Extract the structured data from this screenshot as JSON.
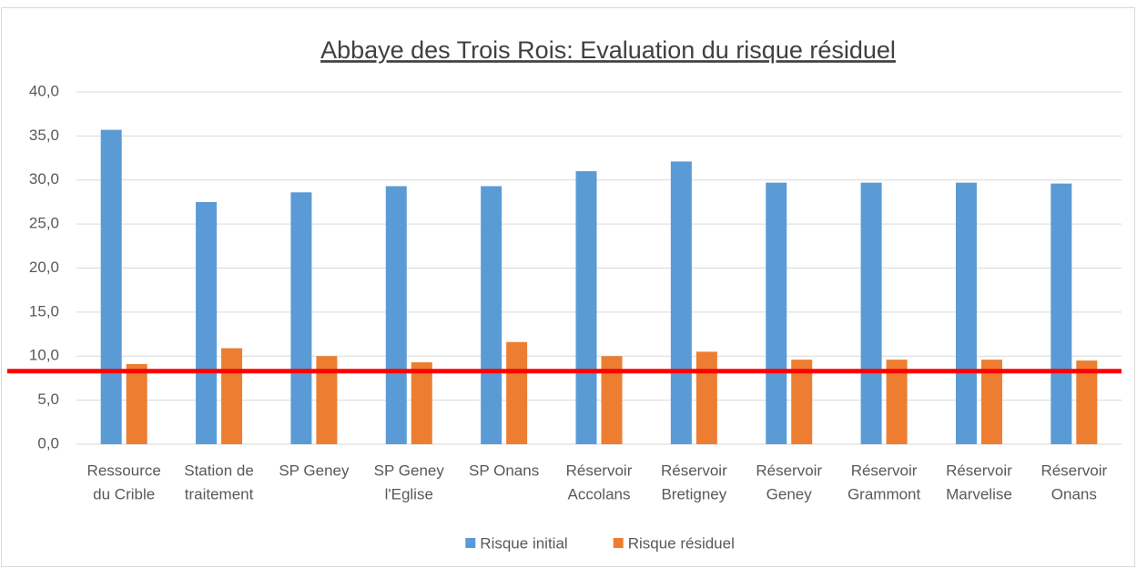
{
  "chart_data": {
    "type": "bar",
    "title": "Abbaye des Trois Rois: Evaluation du risque résiduel",
    "categories": [
      [
        "Ressource",
        "du Crible"
      ],
      [
        "Station de",
        "traitement"
      ],
      [
        "SP Geney"
      ],
      [
        "SP Geney",
        "l'Eglise"
      ],
      [
        "SP Onans"
      ],
      [
        "Réservoir",
        "Accolans"
      ],
      [
        "Réservoir",
        "Bretigney"
      ],
      [
        "Réservoir",
        "Geney"
      ],
      [
        "Réservoir",
        "Grammont"
      ],
      [
        "Réservoir",
        "Marvelise"
      ],
      [
        "Réservoir",
        "Onans"
      ]
    ],
    "series": [
      {
        "name": "Risque initial",
        "color": "#5b9bd5",
        "values": [
          35.7,
          27.5,
          28.6,
          29.3,
          29.3,
          31.0,
          32.1,
          29.7,
          29.7,
          29.7,
          29.6
        ]
      },
      {
        "name": "Risque résiduel",
        "color": "#ed7d31",
        "values": [
          9.1,
          10.9,
          10.0,
          9.3,
          11.6,
          10.0,
          10.5,
          9.6,
          9.6,
          9.6,
          9.5
        ]
      }
    ],
    "reference_line": {
      "value": 8.3,
      "color": "#ff0000"
    },
    "ylim": [
      0,
      40
    ],
    "yticks": [
      {
        "value": 0,
        "label": "0,0"
      },
      {
        "value": 5,
        "label": "5,0"
      },
      {
        "value": 10,
        "label": "10,0"
      },
      {
        "value": 15,
        "label": "15,0"
      },
      {
        "value": 20,
        "label": "20,0"
      },
      {
        "value": 25,
        "label": "25,0"
      },
      {
        "value": 30,
        "label": "30,0"
      },
      {
        "value": 35,
        "label": "35,0"
      },
      {
        "value": 40,
        "label": "40,0"
      }
    ],
    "grid": true,
    "legend": "bottom"
  }
}
